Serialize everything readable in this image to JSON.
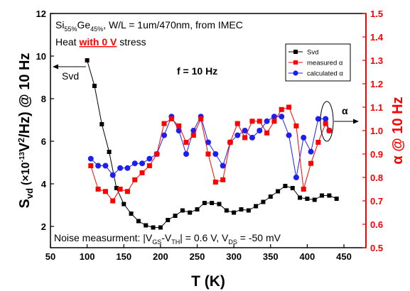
{
  "chart_data": {
    "type": "line",
    "xlabel": "T (K)",
    "ylabel_left": "S_vd (×10^-13 V²/Hz) @ 10 Hz",
    "ylabel_right": "α @ 10 Hz",
    "xlim": [
      50,
      480
    ],
    "ylim_left": [
      1,
      12
    ],
    "ylim_right": [
      0.5,
      1.5
    ],
    "x_ticks": [
      50,
      100,
      150,
      200,
      250,
      300,
      350,
      400,
      450
    ],
    "y_left_ticks": [
      2,
      4,
      6,
      8,
      10,
      12
    ],
    "y_right_ticks": [
      0.5,
      0.6,
      0.7,
      0.8,
      0.9,
      1.0,
      1.1,
      1.2,
      1.3,
      1.4,
      1.5
    ],
    "colors": {
      "svd": "#000000",
      "measured": "#ff0000",
      "calculated": "#1e1ef0",
      "right_axis": "#ff0000"
    },
    "series": [
      {
        "name": "Svd",
        "axis": "left",
        "marker": "square",
        "x": [
          100,
          110,
          120,
          130,
          140,
          150,
          160,
          170,
          180,
          190,
          200,
          210,
          220,
          230,
          240,
          250,
          260,
          270,
          280,
          290,
          300,
          310,
          320,
          330,
          340,
          350,
          360,
          370,
          380,
          390,
          400,
          410,
          420,
          430,
          440
        ],
        "y": [
          9.8,
          8.6,
          6.8,
          5.5,
          3.8,
          3.05,
          2.6,
          2.25,
          2.05,
          1.95,
          1.95,
          2.3,
          2.5,
          2.75,
          2.65,
          2.8,
          3.1,
          3.1,
          3.05,
          2.75,
          2.65,
          2.8,
          2.75,
          2.95,
          3.15,
          3.4,
          3.65,
          3.9,
          3.8,
          3.35,
          3.3,
          3.25,
          3.45,
          3.45,
          3.3
        ]
      },
      {
        "name": "measured α",
        "axis": "right",
        "marker": "square",
        "x": [
          105,
          115,
          125,
          135,
          145,
          155,
          165,
          175,
          185,
          195,
          205,
          215,
          225,
          235,
          245,
          255,
          265,
          275,
          285,
          295,
          305,
          315,
          325,
          335,
          345,
          355,
          365,
          375,
          385,
          395,
          405,
          415,
          425,
          430
        ],
        "y": [
          0.85,
          0.75,
          0.74,
          0.7,
          0.75,
          0.74,
          0.79,
          0.82,
          0.85,
          0.9,
          1.03,
          1.05,
          1.02,
          0.95,
          0.98,
          1.05,
          0.9,
          0.78,
          0.79,
          0.95,
          1.03,
          0.97,
          1.04,
          1.04,
          0.99,
          1.04,
          1.09,
          1.1,
          1.02,
          0.75,
          0.86,
          0.95,
          1.03,
          1.0
        ]
      },
      {
        "name": "calculated α",
        "axis": "right",
        "marker": "circle",
        "x": [
          105,
          115,
          125,
          135,
          145,
          155,
          165,
          175,
          185,
          195,
          205,
          215,
          225,
          235,
          245,
          255,
          265,
          275,
          285,
          295,
          305,
          315,
          325,
          335,
          345,
          355,
          365,
          375,
          385,
          395,
          405,
          415,
          425,
          430
        ],
        "y": [
          0.88,
          0.85,
          0.85,
          0.81,
          0.84,
          0.84,
          0.86,
          0.86,
          0.88,
          0.9,
          0.98,
          1.06,
          1.0,
          0.9,
          1.0,
          1.06,
          0.95,
          0.9,
          0.85,
          0.95,
          0.98,
          1.0,
          0.97,
          1.0,
          1.04,
          1.06,
          1.06,
          0.98,
          0.8,
          0.97,
          0.91,
          1.05,
          1.05,
          1.0
        ]
      }
    ]
  },
  "labels": {
    "x_title": "T (K)",
    "y_left_S": "S",
    "y_left_sub": "vd",
    "y_left_mid": "(×10",
    "y_left_exp": "-13",
    "y_left_rest": "V",
    "y_left_sq": "2",
    "y_left_end": "/Hz) @ 10 Hz",
    "y_right_title": "α @ 10 Hz"
  },
  "annotations": {
    "line1_si": "Si",
    "line1_si_sub": "55%",
    "line1_ge": "Ge",
    "line1_ge_sub": "45%",
    "line1_rest": ", W/L = 1um/470nm, from IMEC",
    "heat_prefix": "Heat ",
    "heat_emph": "with 0 V",
    "heat_suffix": " stress",
    "freq": "f = 10 Hz",
    "svd_arrow": "Svd",
    "alpha_arrow": "α",
    "noise_prefix": "Noise measurment: |V",
    "noise_gs": "GS",
    "noise_mid": "-V",
    "noise_th": "TH",
    "noise_mid2": "| = 0.6 V, V",
    "noise_ds": "DS",
    "noise_end": " = -50 mV"
  },
  "legend": {
    "items": [
      "Svd",
      "measured α",
      "calculated α"
    ]
  }
}
